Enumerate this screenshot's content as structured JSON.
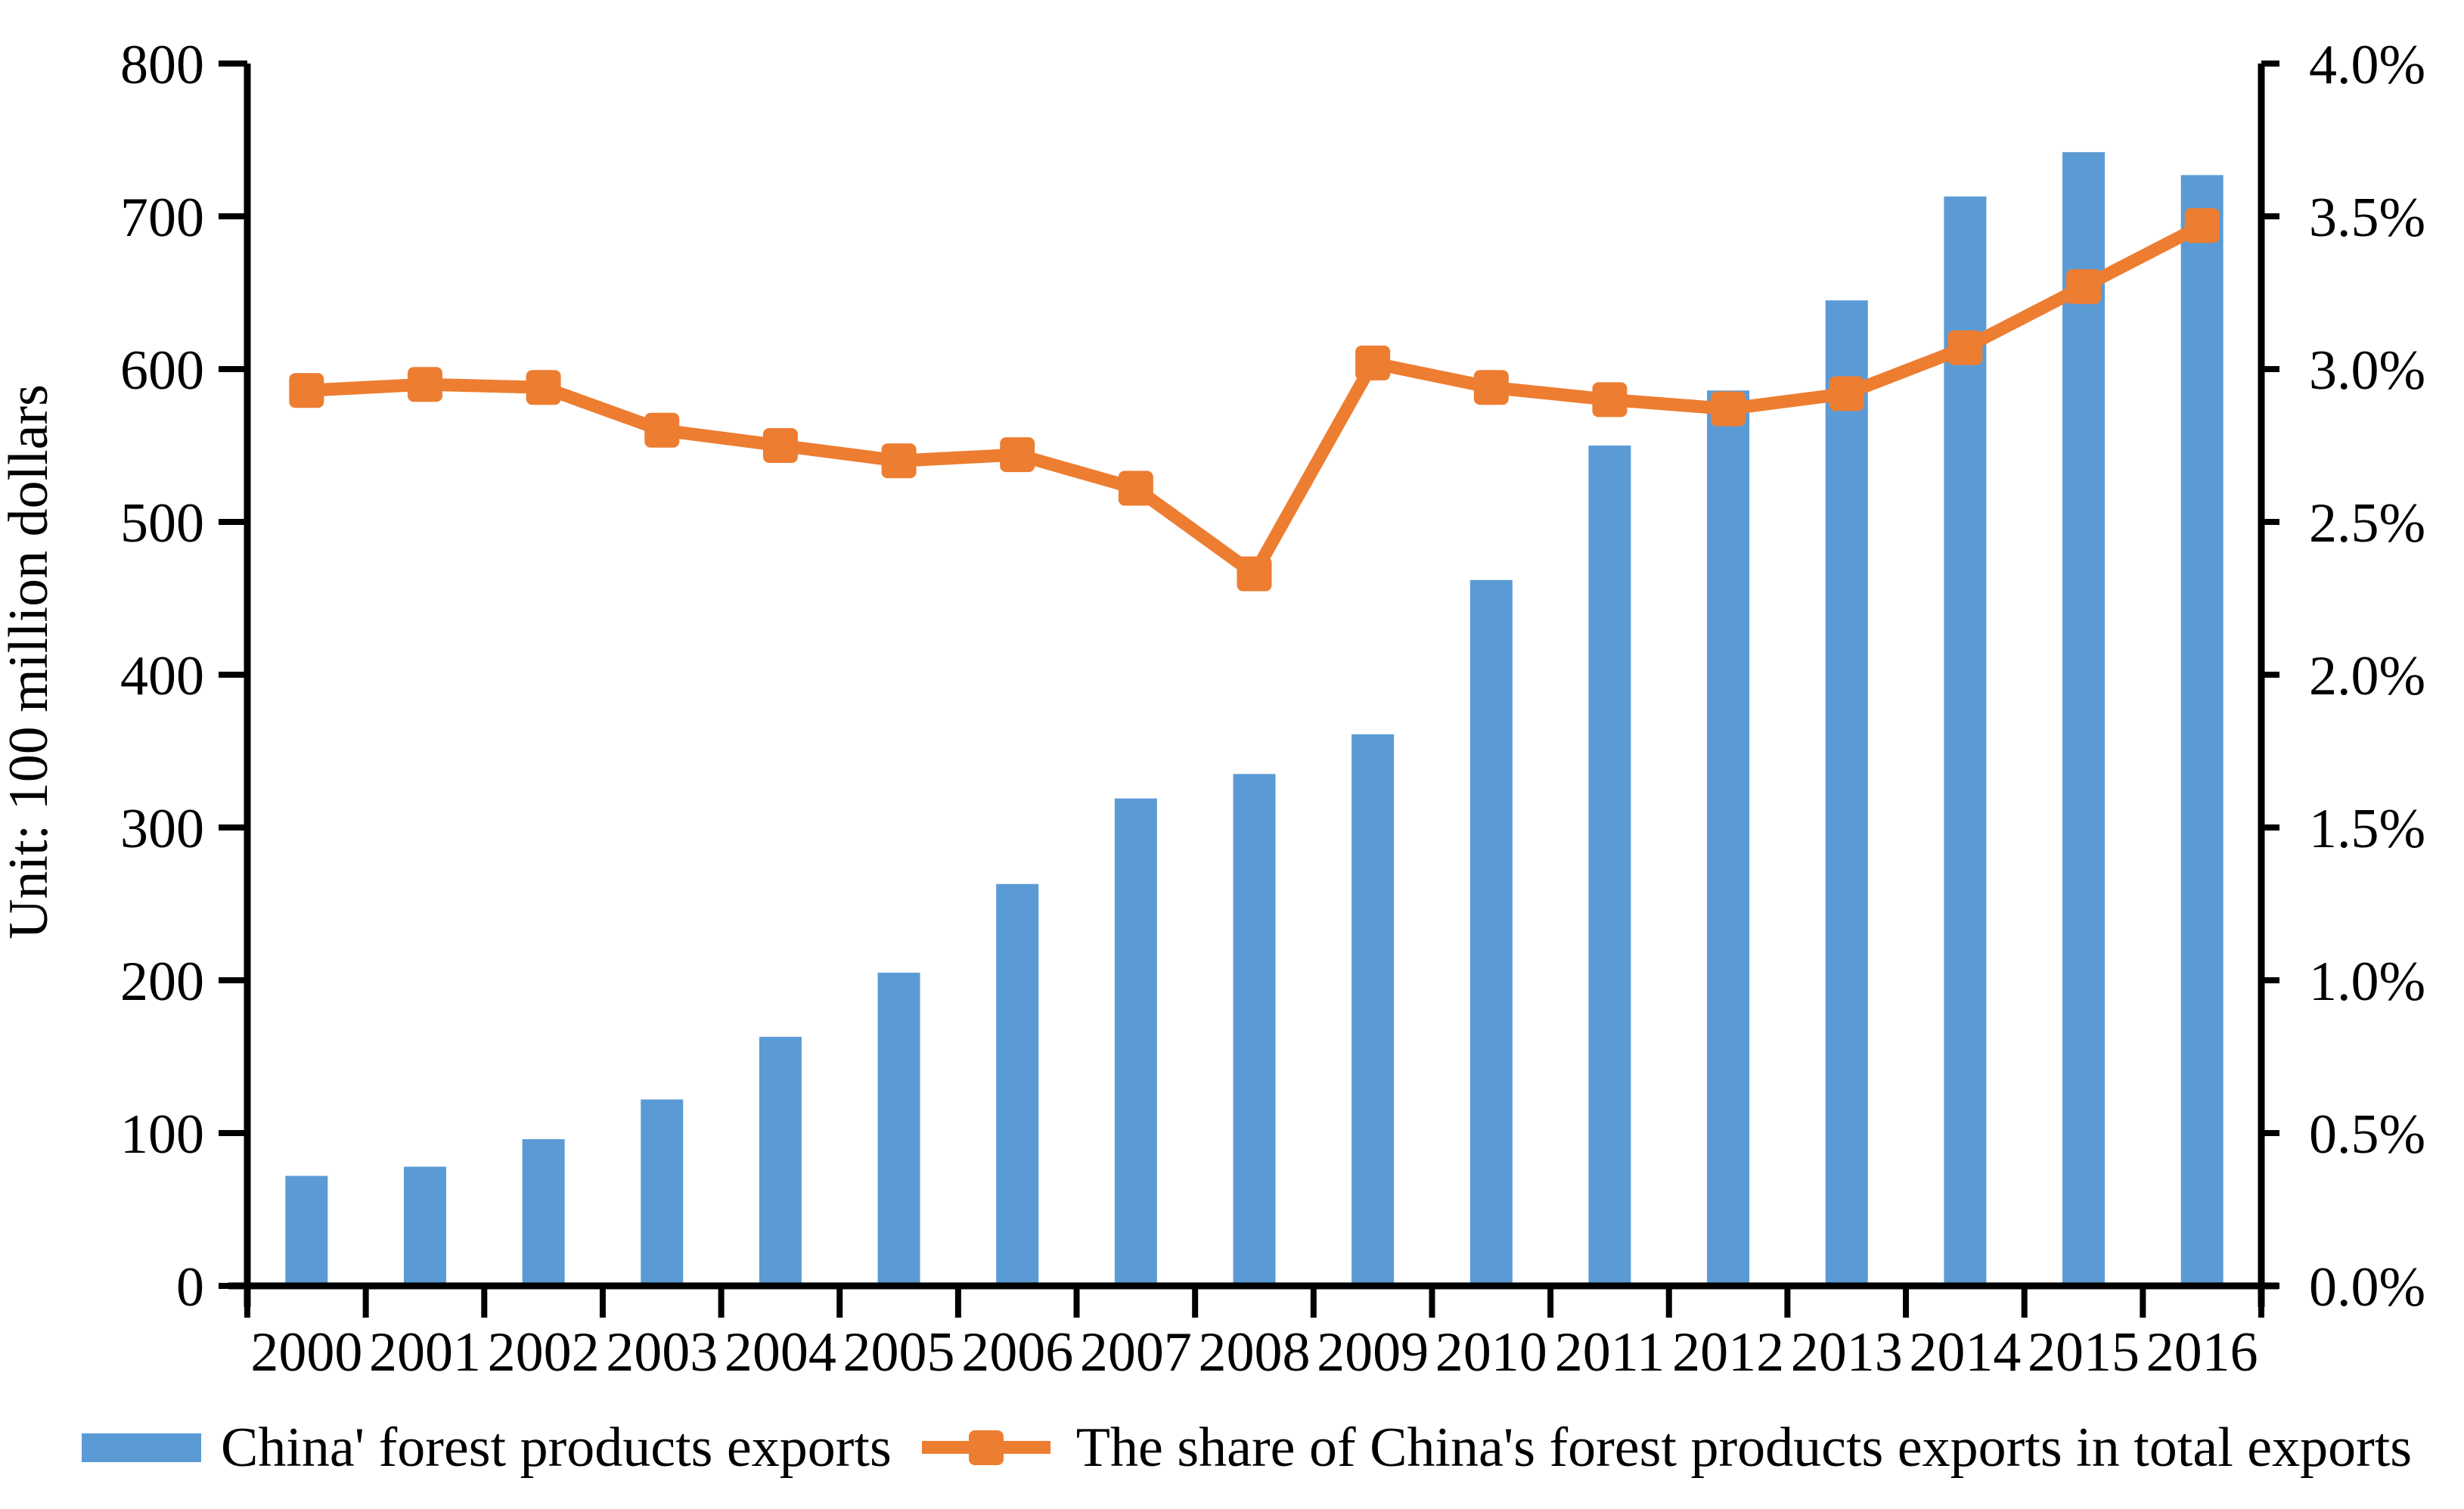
{
  "chart_data": {
    "type": "combo-bar-line",
    "title": "",
    "xlabel": "",
    "ylabel": "Unit: 100 million dollars",
    "categories": [
      "2000",
      "2001",
      "2002",
      "2003",
      "2004",
      "2005",
      "2006",
      "2007",
      "2008",
      "2009",
      "2010",
      "2011",
      "2012",
      "2013",
      "2014",
      "2015",
      "2016"
    ],
    "series": [
      {
        "name": "China' forest products exports",
        "type": "bar",
        "axis": "left",
        "color": "#5B9BD5",
        "values": [
          72,
          78,
          96,
          122,
          163,
          205,
          263,
          319,
          335,
          361,
          462,
          550,
          586,
          645,
          713,
          742,
          727
        ]
      },
      {
        "name": "The share of China's forest products exports in total exports",
        "type": "line",
        "axis": "right",
        "color": "#ED7D31",
        "marker": "square",
        "values": [
          2.93,
          2.95,
          2.94,
          2.8,
          2.75,
          2.7,
          2.72,
          2.61,
          2.33,
          3.02,
          2.94,
          2.9,
          2.87,
          2.92,
          3.07,
          3.27,
          3.47
        ]
      }
    ],
    "left_axis": {
      "min": 0,
      "max": 800,
      "step": 100,
      "tick_labels": [
        "0",
        "100",
        "200",
        "300",
        "400",
        "500",
        "600",
        "700",
        "800"
      ]
    },
    "right_axis": {
      "min": 0,
      "max": 4,
      "step": 0.5,
      "tick_labels": [
        "0.0%",
        "0.5%",
        "1.0%",
        "1.5%",
        "2.0%",
        "2.5%",
        "3.0%",
        "3.5%",
        "4.0%"
      ]
    },
    "grid": false,
    "legend_position": "bottom",
    "axis_color": "#000000",
    "text_color": "#000000"
  }
}
